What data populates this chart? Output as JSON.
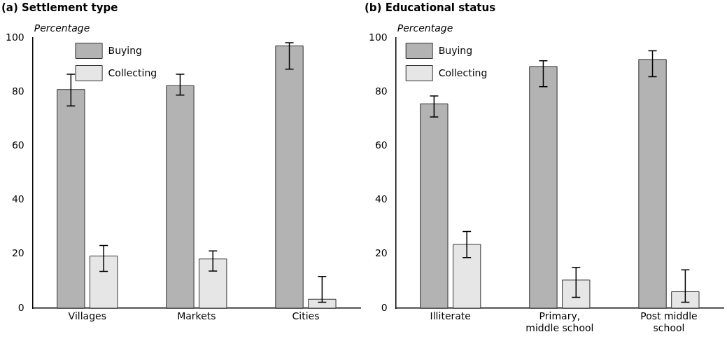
{
  "chart_data": [
    {
      "type": "bar",
      "title": "(a) Settlement type",
      "ylabel": "Percentage",
      "categories": [
        "Villages",
        "Markets",
        "Cities"
      ],
      "ylim": [
        0,
        100
      ],
      "yticks": [
        0,
        20,
        40,
        60,
        80,
        100
      ],
      "legend": "top",
      "grid": false,
      "series": [
        {
          "name": "Buying",
          "color": "#b3b3b3",
          "values": [
            80.9,
            82.3,
            97.0
          ],
          "errors": [
            [
              74.8,
              86.5
            ],
            [
              78.8,
              86.5
            ],
            [
              88.4,
              98.2
            ]
          ]
        },
        {
          "name": "Collecting",
          "color": "#e6e6e6",
          "values": [
            19.3,
            18.2,
            3.3
          ],
          "errors": [
            [
              13.6,
              23.2
            ],
            [
              13.7,
              21.2
            ],
            [
              2.2,
              11.7
            ]
          ]
        }
      ]
    },
    {
      "type": "bar",
      "title": "(b) Educational status",
      "ylabel": "Percentage",
      "categories": [
        "Illiterate",
        "Primary, middle school",
        "Post middle school"
      ],
      "ylim": [
        0,
        100
      ],
      "yticks": [
        0,
        20,
        40,
        60,
        80,
        100
      ],
      "legend": "top left",
      "grid": false,
      "series": [
        {
          "name": "Buying",
          "color": "#b3b3b3",
          "values": [
            75.6,
            89.4,
            92.0
          ],
          "errors": [
            [
              70.7,
              78.5
            ],
            [
              81.9,
              91.5
            ],
            [
              85.6,
              95.2
            ]
          ]
        },
        {
          "name": "Collecting",
          "color": "#e6e6e6",
          "values": [
            23.6,
            10.4,
            6.1
          ],
          "errors": [
            [
              18.7,
              28.4
            ],
            [
              4.0,
              15.1
            ],
            [
              2.2,
              14.2
            ]
          ]
        }
      ]
    }
  ]
}
